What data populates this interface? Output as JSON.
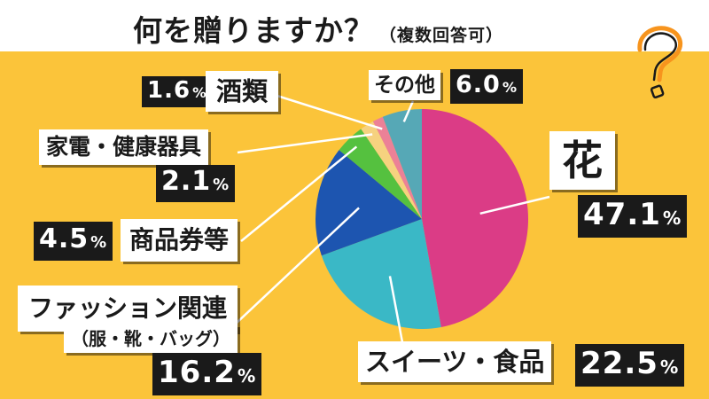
{
  "title": "何を贈りますか？",
  "subtitle": "（複数回答可）",
  "colors": {
    "background": "#fbc43a",
    "title_band": "#ffffff",
    "label_box": "#ffffff",
    "percent_box": "#1a1a1a",
    "question_mark": "#f7941d"
  },
  "icons": {
    "decoration": "question-mark-icon"
  },
  "chart_data": {
    "type": "pie",
    "title": "何を贈りますか？",
    "subtitle": "（複数回答可）",
    "unit": "%",
    "slices": [
      {
        "label": "花",
        "value": 47.1,
        "value_text": "47.1",
        "color": "#db3c86"
      },
      {
        "label": "スイーツ・食品",
        "value": 22.5,
        "value_text": "22.5",
        "color": "#3ab8c6"
      },
      {
        "label": "ファッション関連",
        "sublabel": "（服・靴・バッグ）",
        "value": 16.2,
        "value_text": "16.2",
        "color": "#1d55b0"
      },
      {
        "label": "商品券等",
        "value": 4.5,
        "value_text": "4.5",
        "color": "#55c13f"
      },
      {
        "label": "家電・健康器具",
        "value": 2.1,
        "value_text": "2.1",
        "color": "#f6d27f"
      },
      {
        "label": "酒類",
        "value": 1.6,
        "value_text": "1.6",
        "color": "#ec8197"
      },
      {
        "label": "その他",
        "value": 6.0,
        "value_text": "6.0",
        "color": "#56a8b6"
      }
    ]
  }
}
